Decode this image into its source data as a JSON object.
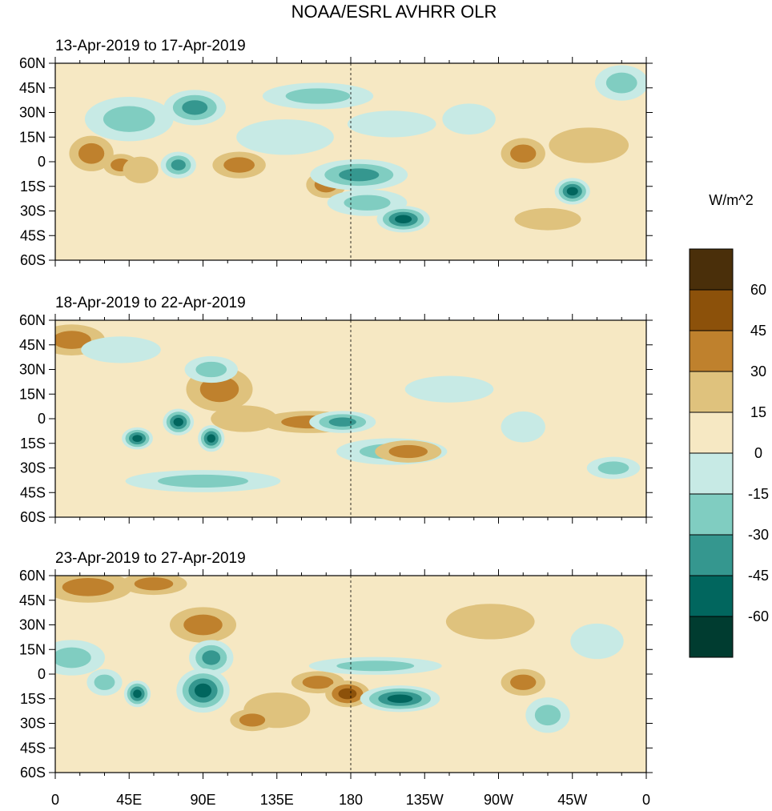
{
  "title": "NOAA/ESRL AVHRR OLR",
  "chart_data": {
    "type": "heatmap",
    "title": "NOAA/ESRL AVHRR OLR",
    "units": "W/m^2",
    "lon_ticks": [
      "0",
      "45E",
      "90E",
      "135E",
      "180",
      "135W",
      "90W",
      "45W",
      "0"
    ],
    "lat_ticks": [
      "60N",
      "45N",
      "30N",
      "15N",
      "0",
      "15S",
      "30S",
      "45S",
      "60S"
    ],
    "xlim_deg_east": [
      0,
      360
    ],
    "ylim_deg_north": [
      -60,
      60
    ],
    "dateline_marker_lon": 180,
    "colorbar": {
      "levels": [
        -60,
        -45,
        -30,
        -15,
        0,
        15,
        30,
        45,
        60
      ],
      "tick_labels": [
        "60",
        "45",
        "30",
        "15",
        "0",
        "-15",
        "-30",
        "-45",
        "-60"
      ],
      "colors": [
        "#4a2f0a",
        "#8c510a",
        "#bf812d",
        "#dfc27d",
        "#f6e8c3",
        "#c7eae5",
        "#80cdc1",
        "#35978f",
        "#01665e",
        "#003c30"
      ]
    },
    "panels": [
      {
        "label": "13-Apr-2019 to 17-Apr-2019",
        "anomalies": [
          {
            "lon": 85,
            "lat": 33,
            "rx": 14,
            "ry": 8,
            "value": -35
          },
          {
            "lon": 45,
            "lat": 26,
            "rx": 20,
            "ry": 10,
            "value": -20
          },
          {
            "lon": 22,
            "lat": 5,
            "rx": 10,
            "ry": 8,
            "value": 25
          },
          {
            "lon": 40,
            "lat": -2,
            "rx": 8,
            "ry": 5,
            "value": 25
          },
          {
            "lon": 52,
            "lat": -5,
            "rx": 8,
            "ry": 6,
            "value": 15
          },
          {
            "lon": 75,
            "lat": -2,
            "rx": 8,
            "ry": 6,
            "value": -35
          },
          {
            "lon": 112,
            "lat": -2,
            "rx": 12,
            "ry": 6,
            "value": 25
          },
          {
            "lon": 140,
            "lat": 15,
            "rx": 22,
            "ry": 8,
            "value": -15
          },
          {
            "lon": 160,
            "lat": 40,
            "rx": 25,
            "ry": 6,
            "value": -20
          },
          {
            "lon": 165,
            "lat": -14,
            "rx": 9,
            "ry": 6,
            "value": 25
          },
          {
            "lon": 185,
            "lat": -8,
            "rx": 22,
            "ry": 7,
            "value": -45
          },
          {
            "lon": 190,
            "lat": -25,
            "rx": 18,
            "ry": 6,
            "value": -25
          },
          {
            "lon": 212,
            "lat": -35,
            "rx": 12,
            "ry": 6,
            "value": -50
          },
          {
            "lon": 205,
            "lat": 23,
            "rx": 20,
            "ry": 6,
            "value": -15
          },
          {
            "lon": 252,
            "lat": 26,
            "rx": 12,
            "ry": 7,
            "value": -15
          },
          {
            "lon": 285,
            "lat": 5,
            "rx": 10,
            "ry": 7,
            "value": 20
          },
          {
            "lon": 315,
            "lat": -18,
            "rx": 8,
            "ry": 6,
            "value": -55
          },
          {
            "lon": 325,
            "lat": 10,
            "rx": 18,
            "ry": 8,
            "value": 15
          },
          {
            "lon": 345,
            "lat": 48,
            "rx": 12,
            "ry": 8,
            "value": -30
          },
          {
            "lon": 300,
            "lat": -35,
            "rx": 15,
            "ry": 5,
            "value": 15
          }
        ]
      },
      {
        "label": "18-Apr-2019 to 22-Apr-2019",
        "anomalies": [
          {
            "lon": 10,
            "lat": 48,
            "rx": 15,
            "ry": 7,
            "value": 30
          },
          {
            "lon": 40,
            "lat": 42,
            "rx": 18,
            "ry": 6,
            "value": -15
          },
          {
            "lon": 100,
            "lat": 18,
            "rx": 15,
            "ry": 10,
            "value": 20
          },
          {
            "lon": 115,
            "lat": 0,
            "rx": 15,
            "ry": 6,
            "value": 15
          },
          {
            "lon": 50,
            "lat": -12,
            "rx": 7,
            "ry": 5,
            "value": -50
          },
          {
            "lon": 75,
            "lat": -2,
            "rx": 7,
            "ry": 6,
            "value": -55
          },
          {
            "lon": 95,
            "lat": -12,
            "rx": 6,
            "ry": 6,
            "value": -55
          },
          {
            "lon": 95,
            "lat": 30,
            "rx": 12,
            "ry": 6,
            "value": -25
          },
          {
            "lon": 155,
            "lat": -2,
            "rx": 22,
            "ry": 5,
            "value": 30
          },
          {
            "lon": 175,
            "lat": -2,
            "rx": 15,
            "ry": 5,
            "value": -45
          },
          {
            "lon": 205,
            "lat": -20,
            "rx": 25,
            "ry": 6,
            "value": -30
          },
          {
            "lon": 215,
            "lat": -20,
            "rx": 15,
            "ry": 5,
            "value": 20
          },
          {
            "lon": 240,
            "lat": 18,
            "rx": 20,
            "ry": 6,
            "value": -15
          },
          {
            "lon": 90,
            "lat": -38,
            "rx": 35,
            "ry": 5,
            "value": -25
          },
          {
            "lon": 340,
            "lat": -30,
            "rx": 12,
            "ry": 5,
            "value": -30
          },
          {
            "lon": 285,
            "lat": -5,
            "rx": 10,
            "ry": 7,
            "value": -15
          }
        ]
      },
      {
        "label": "23-Apr-2019 to 27-Apr-2019",
        "anomalies": [
          {
            "lon": 20,
            "lat": 53,
            "rx": 20,
            "ry": 7,
            "value": 30
          },
          {
            "lon": 60,
            "lat": 55,
            "rx": 15,
            "ry": 5,
            "value": 20
          },
          {
            "lon": 90,
            "lat": 30,
            "rx": 15,
            "ry": 8,
            "value": 20
          },
          {
            "lon": 95,
            "lat": 10,
            "rx": 10,
            "ry": 8,
            "value": -40
          },
          {
            "lon": 90,
            "lat": -10,
            "rx": 12,
            "ry": 10,
            "value": -55
          },
          {
            "lon": 50,
            "lat": -12,
            "rx": 6,
            "ry": 6,
            "value": -55
          },
          {
            "lon": 30,
            "lat": -5,
            "rx": 8,
            "ry": 6,
            "value": -20
          },
          {
            "lon": 135,
            "lat": -22,
            "rx": 15,
            "ry": 8,
            "value": 15
          },
          {
            "lon": 120,
            "lat": -28,
            "rx": 10,
            "ry": 5,
            "value": 20
          },
          {
            "lon": 160,
            "lat": -5,
            "rx": 12,
            "ry": 5,
            "value": 25
          },
          {
            "lon": 178,
            "lat": -12,
            "rx": 10,
            "ry": 6,
            "value": 35
          },
          {
            "lon": 210,
            "lat": -15,
            "rx": 18,
            "ry": 6,
            "value": -50
          },
          {
            "lon": 195,
            "lat": 5,
            "rx": 30,
            "ry": 4,
            "value": -25
          },
          {
            "lon": 265,
            "lat": 32,
            "rx": 20,
            "ry": 8,
            "value": 15
          },
          {
            "lon": 285,
            "lat": -5,
            "rx": 10,
            "ry": 6,
            "value": 20
          },
          {
            "lon": 300,
            "lat": -25,
            "rx": 10,
            "ry": 8,
            "value": -25
          },
          {
            "lon": 10,
            "lat": 10,
            "rx": 15,
            "ry": 8,
            "value": -20
          },
          {
            "lon": 330,
            "lat": 20,
            "rx": 12,
            "ry": 8,
            "value": -15
          }
        ]
      }
    ]
  }
}
